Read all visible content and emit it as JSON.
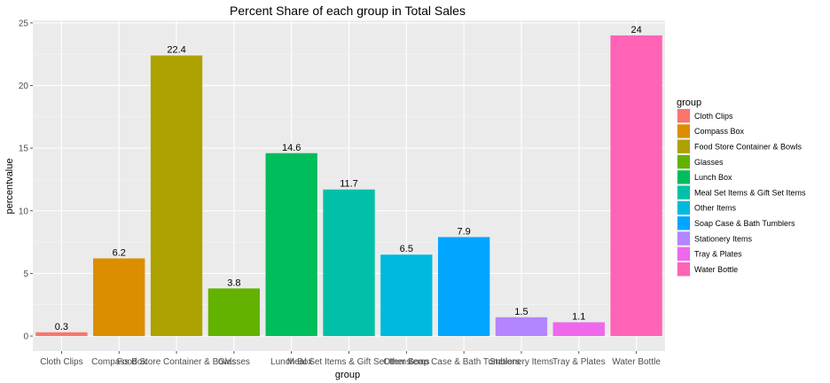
{
  "chart_data": {
    "type": "bar",
    "title": "Percent Share of each group in Total Sales",
    "xlabel": "group",
    "ylabel": "percentvalue",
    "categories": [
      "Cloth Clips",
      "Compass Box",
      "Food Store Container & Bowls",
      "Glasses",
      "Lunch Box",
      "Meal Set Items & Gift Set Items",
      "Other Items",
      "Soap Case & Bath Tumblers",
      "Stationery Items",
      "Tray & Plates",
      "Water Bottle"
    ],
    "values": [
      0.3,
      6.2,
      22.4,
      3.8,
      14.6,
      11.7,
      6.5,
      7.9,
      1.5,
      1.1,
      24
    ],
    "data_labels": [
      "0.3",
      "6.2",
      "22.4",
      "3.8",
      "14.6",
      "11.7",
      "6.5",
      "7.9",
      "1.5",
      "1.1",
      "24"
    ],
    "colors": [
      "#F8766D",
      "#DB8E00",
      "#AEA200",
      "#64B200",
      "#00BD5C",
      "#00C1A7",
      "#00BADE",
      "#00A6FF",
      "#B385FF",
      "#EF67EB",
      "#FF63B6"
    ],
    "ylim": [
      -1.2,
      25.2
    ],
    "yticks": [
      0,
      5,
      10,
      15,
      20,
      25
    ],
    "grid": true,
    "panel_background": "#EBEBEB",
    "legend": {
      "title": "group",
      "position": "right"
    }
  }
}
